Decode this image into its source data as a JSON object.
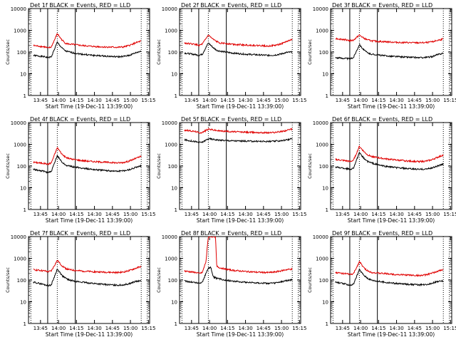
{
  "colors": {
    "events": "#000000",
    "lld": "#e00000",
    "axes": "#000000",
    "background": "#ffffff"
  },
  "chart_data": [
    {
      "type": "line",
      "title": "Det 1f BLACK = Events, RED = LLD",
      "xlabel": "Start Time (19-Dec-11 13:39:00)",
      "ylabel": "Counts/sec",
      "x_ticks": [
        "13:45",
        "14:00",
        "14:15",
        "14:30",
        "14:45",
        "15:00",
        "15:15"
      ],
      "y_ticks": [
        "1",
        "10",
        "100",
        "1000",
        "10000"
      ],
      "y_scale": "log",
      "ylim": [
        1,
        10000
      ],
      "xlim_minutes": [
        -4,
        97
      ],
      "dotted_vlines_minutes": [
        -2,
        20,
        90,
        95
      ],
      "solid_vlines_minutes": [
        12,
        35
      ],
      "grid": false,
      "x_unit": "minutes after 13:39:00",
      "series": [
        {
          "color": "#000000",
          "x": [
            0,
            10,
            12,
            15,
            20,
            24,
            27,
            30,
            34,
            40,
            50,
            60,
            70,
            75,
            80,
            85,
            90
          ],
          "values": [
            70,
            60,
            55,
            60,
            280,
            150,
            110,
            100,
            90,
            80,
            70,
            65,
            60,
            62,
            70,
            90,
            110
          ]
        },
        {
          "color": "#e00000",
          "x": [
            0,
            10,
            12,
            15,
            20,
            24,
            27,
            30,
            34,
            40,
            50,
            60,
            70,
            75,
            80,
            85,
            90
          ],
          "values": [
            200,
            170,
            150,
            170,
            700,
            350,
            250,
            230,
            220,
            200,
            180,
            170,
            165,
            170,
            200,
            260,
            320
          ]
        }
      ]
    },
    {
      "type": "line",
      "title": "Det 2f BLACK = Events, RED = LLD",
      "xlabel": "Start Time (19-Dec-11 13:39:00)",
      "ylabel": "Counts/sec",
      "x_ticks": [
        "13:45",
        "14:00",
        "14:15",
        "14:30",
        "14:45",
        "15:00",
        "15:15"
      ],
      "y_ticks": [
        "1",
        "10",
        "100",
        "1000",
        "10000"
      ],
      "y_scale": "log",
      "ylim": [
        1,
        10000
      ],
      "xlim_minutes": [
        -4,
        97
      ],
      "dotted_vlines_minutes": [
        -2,
        20,
        90,
        95
      ],
      "solid_vlines_minutes": [
        12,
        35
      ],
      "grid": false,
      "x_unit": "minutes after 13:39:00",
      "series": [
        {
          "color": "#000000",
          "x": [
            0,
            10,
            12,
            15,
            20,
            24,
            27,
            30,
            34,
            40,
            50,
            60,
            70,
            75,
            80,
            85,
            90
          ],
          "values": [
            90,
            75,
            70,
            80,
            260,
            160,
            120,
            110,
            100,
            90,
            80,
            75,
            70,
            72,
            80,
            95,
            100
          ]
        },
        {
          "color": "#e00000",
          "x": [
            0,
            10,
            12,
            15,
            20,
            24,
            27,
            30,
            34,
            40,
            50,
            60,
            70,
            75,
            80,
            85,
            90
          ],
          "values": [
            260,
            220,
            200,
            230,
            600,
            380,
            300,
            260,
            250,
            230,
            210,
            200,
            190,
            200,
            230,
            300,
            380
          ]
        }
      ]
    },
    {
      "type": "line",
      "title": "Det 3f BLACK = Events, RED = LLD",
      "xlabel": "Start Time (19-Dec-11 13:39:00)",
      "ylabel": "Counts/sec",
      "x_ticks": [
        "13:45",
        "14:00",
        "14:15",
        "14:30",
        "14:45",
        "15:00",
        "15:15"
      ],
      "y_ticks": [
        "1",
        "10",
        "100",
        "1000",
        "10000"
      ],
      "y_scale": "log",
      "ylim": [
        1,
        10000
      ],
      "xlim_minutes": [
        -4,
        97
      ],
      "dotted_vlines_minutes": [
        -2,
        20,
        90,
        95
      ],
      "solid_vlines_minutes": [
        12,
        35
      ],
      "grid": false,
      "x_unit": "minutes after 13:39:00",
      "series": [
        {
          "color": "#000000",
          "x": [
            0,
            10,
            12,
            15,
            20,
            24,
            27,
            30,
            34,
            40,
            50,
            60,
            70,
            75,
            80,
            85,
            90
          ],
          "values": [
            55,
            50,
            48,
            55,
            220,
            120,
            90,
            80,
            75,
            68,
            62,
            58,
            55,
            56,
            60,
            75,
            90
          ]
        },
        {
          "color": "#e00000",
          "x": [
            0,
            10,
            12,
            15,
            20,
            24,
            27,
            30,
            34,
            40,
            50,
            60,
            70,
            75,
            80,
            85,
            90
          ],
          "values": [
            420,
            360,
            330,
            350,
            600,
            420,
            360,
            330,
            310,
            300,
            280,
            270,
            265,
            270,
            290,
            340,
            400
          ]
        }
      ]
    },
    {
      "type": "line",
      "title": "Det 4f BLACK = Events, RED = LLD",
      "xlabel": "Start Time (19-Dec-11 13:39:00)",
      "ylabel": "Counts/sec",
      "x_ticks": [
        "13:45",
        "14:00",
        "14:15",
        "14:30",
        "14:45",
        "15:00",
        "15:15"
      ],
      "y_ticks": [
        "1",
        "10",
        "100",
        "1000",
        "10000"
      ],
      "y_scale": "log",
      "ylim": [
        1,
        10000
      ],
      "xlim_minutes": [
        -4,
        97
      ],
      "dotted_vlines_minutes": [
        -2,
        20,
        90,
        95
      ],
      "solid_vlines_minutes": [
        12,
        35
      ],
      "grid": false,
      "x_unit": "minutes after 13:39:00",
      "series": [
        {
          "color": "#000000",
          "x": [
            0,
            10,
            12,
            15,
            20,
            24,
            27,
            30,
            34,
            40,
            50,
            60,
            70,
            75,
            80,
            85,
            90
          ],
          "values": [
            70,
            55,
            50,
            55,
            300,
            150,
            110,
            100,
            90,
            80,
            70,
            62,
            58,
            60,
            68,
            85,
            100
          ]
        },
        {
          "color": "#e00000",
          "x": [
            0,
            10,
            12,
            15,
            20,
            24,
            27,
            30,
            34,
            40,
            50,
            60,
            70,
            75,
            80,
            85,
            90
          ],
          "values": [
            150,
            130,
            120,
            140,
            700,
            350,
            250,
            220,
            200,
            180,
            160,
            150,
            140,
            145,
            170,
            220,
            280
          ]
        }
      ]
    },
    {
      "type": "line",
      "title": "Det 5f BLACK = Events, RED = LLD",
      "xlabel": "Start Time (19-Dec-11 13:39:00)",
      "ylabel": "Counts/sec",
      "x_ticks": [
        "13:45",
        "14:00",
        "14:15",
        "14:30",
        "14:45",
        "15:00",
        "15:15"
      ],
      "y_ticks": [
        "1",
        "10",
        "100",
        "1000",
        "10000"
      ],
      "y_scale": "log",
      "ylim": [
        1,
        10000
      ],
      "xlim_minutes": [
        -4,
        97
      ],
      "dotted_vlines_minutes": [
        -2,
        20,
        90,
        95
      ],
      "solid_vlines_minutes": [
        12,
        35
      ],
      "grid": false,
      "x_unit": "minutes after 13:39:00",
      "series": [
        {
          "color": "#000000",
          "x": [
            0,
            10,
            12,
            15,
            20,
            24,
            27,
            30,
            34,
            40,
            50,
            60,
            70,
            75,
            80,
            85,
            90
          ],
          "values": [
            1600,
            1300,
            1200,
            1250,
            1800,
            1700,
            1600,
            1550,
            1500,
            1450,
            1400,
            1380,
            1350,
            1380,
            1450,
            1600,
            1800
          ]
        },
        {
          "color": "#e00000",
          "x": [
            0,
            10,
            12,
            15,
            20,
            24,
            27,
            30,
            34,
            40,
            50,
            60,
            70,
            75,
            80,
            85,
            90
          ],
          "values": [
            4500,
            3800,
            3400,
            3500,
            5000,
            4600,
            4300,
            4100,
            4000,
            3800,
            3600,
            3500,
            3400,
            3500,
            3800,
            4300,
            5000
          ]
        }
      ]
    },
    {
      "type": "line",
      "title": "Det 6f BLACK = Events, RED = LLD",
      "xlabel": "Start Time (19-Dec-11 13:39:00)",
      "ylabel": "Counts/sec",
      "x_ticks": [
        "13:45",
        "14:00",
        "14:15",
        "14:30",
        "14:45",
        "15:00",
        "15:15"
      ],
      "y_ticks": [
        "1",
        "10",
        "100",
        "1000",
        "10000"
      ],
      "y_scale": "log",
      "ylim": [
        1,
        10000
      ],
      "xlim_minutes": [
        -4,
        97
      ],
      "dotted_vlines_minutes": [
        -2,
        20,
        90,
        95
      ],
      "solid_vlines_minutes": [
        12,
        35
      ],
      "grid": false,
      "x_unit": "minutes after 13:39:00",
      "series": [
        {
          "color": "#000000",
          "x": [
            0,
            10,
            12,
            15,
            20,
            24,
            27,
            30,
            34,
            40,
            50,
            60,
            70,
            75,
            80,
            85,
            90
          ],
          "values": [
            90,
            75,
            70,
            80,
            400,
            220,
            160,
            140,
            120,
            100,
            85,
            75,
            70,
            72,
            80,
            100,
            120
          ]
        },
        {
          "color": "#e00000",
          "x": [
            0,
            10,
            12,
            15,
            20,
            24,
            27,
            30,
            34,
            40,
            50,
            60,
            70,
            75,
            80,
            85,
            90
          ],
          "values": [
            200,
            170,
            160,
            180,
            800,
            450,
            320,
            280,
            250,
            220,
            190,
            170,
            160,
            165,
            190,
            250,
            320
          ]
        }
      ]
    },
    {
      "type": "line",
      "title": "Det 7f BLACK = Events, RED = LLD",
      "xlabel": "Start Time (19-Dec-11 13:39:00)",
      "ylabel": "Counts/sec",
      "x_ticks": [
        "13:45",
        "14:00",
        "14:15",
        "14:30",
        "14:45",
        "15:00",
        "15:15"
      ],
      "y_ticks": [
        "1",
        "10",
        "100",
        "1000",
        "10000"
      ],
      "y_scale": "log",
      "ylim": [
        1,
        10000
      ],
      "xlim_minutes": [
        -4,
        97
      ],
      "dotted_vlines_minutes": [
        -2,
        20,
        90,
        95
      ],
      "solid_vlines_minutes": [
        12,
        35
      ],
      "grid": false,
      "x_unit": "minutes after 13:39:00",
      "series": [
        {
          "color": "#000000",
          "x": [
            0,
            10,
            12,
            15,
            20,
            24,
            27,
            30,
            34,
            40,
            50,
            60,
            70,
            75,
            80,
            85,
            90
          ],
          "values": [
            80,
            60,
            55,
            60,
            320,
            160,
            120,
            100,
            90,
            80,
            70,
            62,
            58,
            60,
            68,
            85,
            90
          ]
        },
        {
          "color": "#e00000",
          "x": [
            0,
            10,
            12,
            15,
            20,
            24,
            27,
            30,
            34,
            40,
            50,
            60,
            70,
            75,
            80,
            85,
            90
          ],
          "values": [
            300,
            260,
            240,
            260,
            800,
            450,
            340,
            300,
            280,
            260,
            240,
            230,
            220,
            230,
            270,
            340,
            420
          ]
        }
      ]
    },
    {
      "type": "line",
      "title": "Det 8f BLACK = Events, RED = LLD",
      "xlabel": "Start Time (19-Dec-11 13:39:00)",
      "ylabel": "Counts/sec",
      "x_ticks": [
        "13:45",
        "14:00",
        "14:15",
        "14:30",
        "14:45",
        "15:00",
        "15:15"
      ],
      "y_ticks": [
        "1",
        "10",
        "100",
        "1000",
        "10000"
      ],
      "y_scale": "log",
      "ylim": [
        1,
        10000
      ],
      "xlim_minutes": [
        -4,
        97
      ],
      "dotted_vlines_minutes": [
        -2,
        20,
        90,
        95
      ],
      "solid_vlines_minutes": [
        12,
        35
      ],
      "grid": false,
      "x_unit": "minutes after 13:39:00",
      "series": [
        {
          "color": "#000000",
          "x": [
            0,
            10,
            12,
            15,
            18,
            20,
            22,
            24,
            27,
            30,
            34,
            40,
            50,
            60,
            70,
            75,
            80,
            85,
            90
          ],
          "values": [
            90,
            75,
            70,
            80,
            200,
            350,
            400,
            140,
            120,
            110,
            100,
            90,
            80,
            75,
            70,
            72,
            80,
            95,
            100
          ]
        },
        {
          "color": "#e00000",
          "x": [
            0,
            10,
            12,
            15,
            18,
            20,
            22,
            24,
            25,
            26,
            27,
            30,
            34,
            40,
            50,
            60,
            70,
            75,
            80,
            85,
            90
          ],
          "values": [
            260,
            220,
            200,
            220,
            700,
            10000,
            10000,
            10000,
            10000,
            10000,
            420,
            360,
            320,
            280,
            250,
            230,
            220,
            230,
            260,
            300,
            320
          ]
        }
      ]
    },
    {
      "type": "line",
      "title": "Det 9f BLACK = Events, RED = LLD",
      "xlabel": "Start Time (19-Dec-11 13:39:00)",
      "ylabel": "Counts/sec",
      "x_ticks": [
        "13:45",
        "14:00",
        "14:15",
        "14:30",
        "14:45",
        "15:00",
        "15:15"
      ],
      "y_ticks": [
        "1",
        "10",
        "100",
        "1000",
        "10000"
      ],
      "y_scale": "log",
      "ylim": [
        1,
        10000
      ],
      "xlim_minutes": [
        -4,
        97
      ],
      "dotted_vlines_minutes": [
        -2,
        20,
        90,
        95
      ],
      "solid_vlines_minutes": [
        12,
        35
      ],
      "grid": false,
      "x_unit": "minutes after 13:39:00",
      "series": [
        {
          "color": "#000000",
          "x": [
            0,
            10,
            12,
            15,
            20,
            24,
            27,
            30,
            34,
            40,
            50,
            60,
            70,
            75,
            80,
            85,
            90
          ],
          "values": [
            80,
            62,
            58,
            62,
            300,
            160,
            120,
            100,
            90,
            80,
            70,
            64,
            60,
            62,
            70,
            85,
            90
          ]
        },
        {
          "color": "#e00000",
          "x": [
            0,
            10,
            12,
            15,
            20,
            24,
            27,
            30,
            34,
            40,
            50,
            60,
            70,
            75,
            80,
            85,
            90
          ],
          "values": [
            220,
            190,
            180,
            190,
            700,
            350,
            260,
            230,
            210,
            200,
            180,
            170,
            160,
            170,
            200,
            250,
            300
          ]
        }
      ]
    }
  ]
}
